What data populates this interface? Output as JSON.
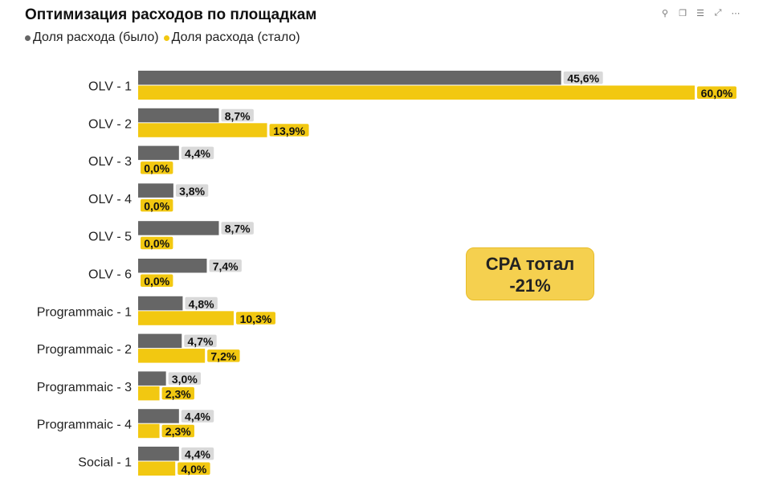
{
  "chart_data": {
    "type": "bar",
    "orientation": "horizontal",
    "title": "Оптимизация расходов по площадкам",
    "categories": [
      "OLV - 1",
      "OLV - 2",
      "OLV - 3",
      "OLV - 4",
      "OLV - 5",
      "OLV - 6",
      "Programmaic - 1",
      "Programmaic - 2",
      "Programmaic - 3",
      "Programmaic - 4",
      "Social - 1"
    ],
    "series": [
      {
        "name": "Доля расхода (было)",
        "color": "#666666",
        "values": [
          45.6,
          8.7,
          4.4,
          3.8,
          8.7,
          7.4,
          4.8,
          4.7,
          3.0,
          4.4,
          4.4
        ],
        "labels": [
          "45,6%",
          "8,7%",
          "4,4%",
          "3,8%",
          "8,7%",
          "7,4%",
          "4,8%",
          "4,7%",
          "3,0%",
          "4,4%",
          "4,4%"
        ],
        "label_bg": "#d9d9d9"
      },
      {
        "name": "Доля расхода (стало)",
        "color": "#f2c811",
        "values": [
          60.0,
          13.9,
          0.0,
          0.0,
          0.0,
          0.0,
          10.3,
          7.2,
          2.3,
          2.3,
          4.0
        ],
        "labels": [
          "60,0%",
          "13,9%",
          "0,0%",
          "0,0%",
          "0,0%",
          "0,0%",
          "10,3%",
          "7,2%",
          "2,3%",
          "2,3%",
          "4,0%"
        ],
        "label_bg": "#f2c811"
      }
    ],
    "xlim": [
      0,
      60
    ],
    "grid": false,
    "legend_position": "top-left"
  },
  "annotation": {
    "line1": "CPA тотал",
    "line2": "-21%"
  },
  "toolbar": [
    "pin-icon",
    "copy-icon",
    "filter-icon",
    "focus-mode-icon",
    "more-options-icon"
  ]
}
